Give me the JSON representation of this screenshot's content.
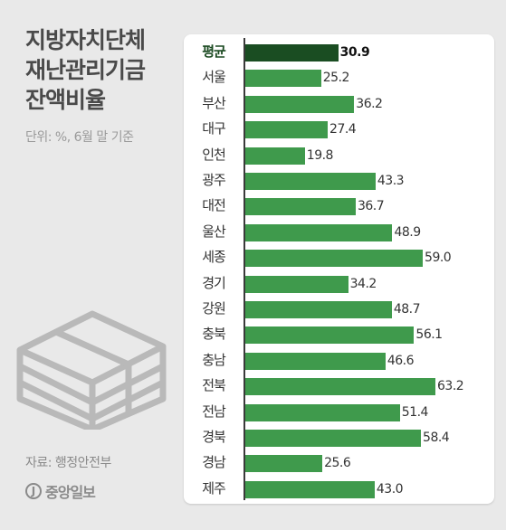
{
  "title_lines": [
    "지방자치단체",
    "재난관리기금",
    "잔액비율"
  ],
  "unit": "단위: %, 6월 말 기준",
  "source": "자료: 행정안전부",
  "logo": {
    "mark": "J",
    "text": "중앙일보"
  },
  "colors": {
    "bar": "#3f9a4c",
    "highlight_bar": "#1a4d22",
    "background": "#e9e9e9",
    "panel": "#ffffff"
  },
  "chart_data": {
    "type": "bar",
    "orientation": "horizontal",
    "categories": [
      "평균",
      "서울",
      "부산",
      "대구",
      "인천",
      "광주",
      "대전",
      "울산",
      "세종",
      "경기",
      "강원",
      "충북",
      "충남",
      "전북",
      "전남",
      "경북",
      "경남",
      "제주"
    ],
    "value_labels": [
      "30.9",
      "25.2",
      "36.2",
      "27.4",
      "19.8",
      "43.3",
      "36.7",
      "48.9",
      "59.0",
      "34.2",
      "48.7",
      "56.1",
      "46.6",
      "63.2",
      "51.4",
      "58.4",
      "25.6",
      "43.0"
    ],
    "values": [
      30.9,
      25.2,
      36.2,
      27.4,
      19.8,
      43.3,
      36.7,
      48.9,
      59.0,
      34.2,
      48.7,
      56.1,
      46.6,
      63.2,
      51.4,
      58.4,
      25.6,
      43.0
    ],
    "highlight": "평균",
    "xlim": [
      0,
      63.2
    ],
    "grid": false,
    "legend": "none"
  }
}
